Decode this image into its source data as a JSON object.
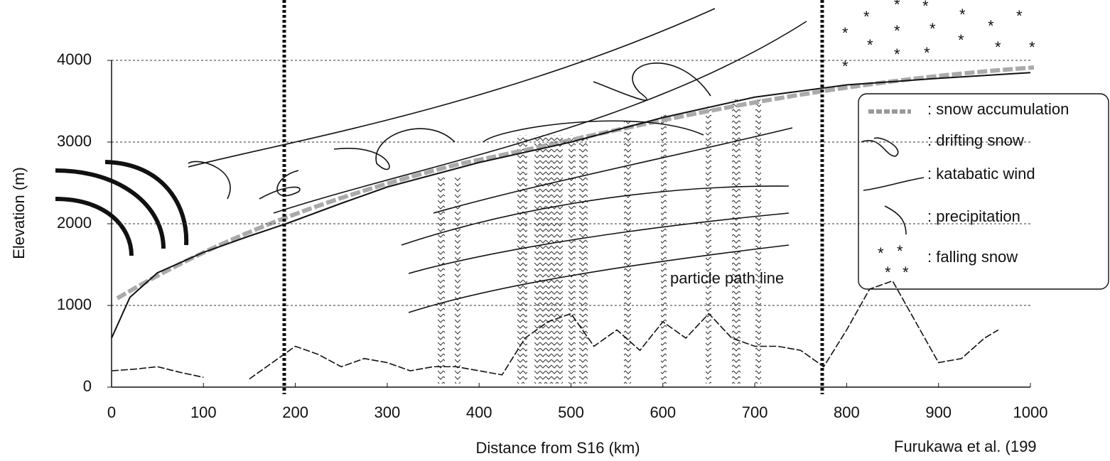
{
  "chart_data": {
    "type": "line",
    "xlabel": "Distance from S16 (km)",
    "ylabel": "Elevation (m)",
    "xlim": [
      0,
      1000
    ],
    "ylim": [
      0,
      4000
    ],
    "xticks": [
      0,
      100,
      200,
      300,
      400,
      500,
      600,
      700,
      800,
      900,
      1000
    ],
    "yticks": [
      0,
      1000,
      2000,
      3000,
      4000
    ],
    "grid": true,
    "annotations": [
      "particle path line",
      "Furukawa et al. (199"
    ],
    "legend_items": [
      ": snow accumulation",
      ": drifting snow",
      ": katabatic wind",
      ": precipitation",
      ": falling snow"
    ],
    "series": [
      {
        "color": "#111111",
        "x": [
          0,
          20,
          50,
          100,
          150,
          190,
          250,
          300,
          400,
          500,
          600,
          700,
          800,
          900,
          1000
        ],
        "values": [
          600,
          1100,
          1400,
          1650,
          1850,
          2000,
          2250,
          2450,
          2750,
          3000,
          3300,
          3550,
          3700,
          3780,
          3850
        ]
      },
      {
        "color": "#111111",
        "x": [
          0,
          25,
          50,
          75,
          100,
          125,
          150,
          175,
          200,
          225,
          250,
          275,
          300,
          325,
          350,
          375,
          400,
          425,
          450,
          475,
          500,
          525,
          550,
          575,
          600,
          625,
          650,
          675,
          700,
          725,
          750,
          775,
          800,
          825,
          850,
          875,
          900,
          925,
          950,
          965
        ],
        "values": [
          200,
          220,
          250,
          180,
          120,
          null,
          100,
          300,
          500,
          400,
          250,
          350,
          300,
          200,
          250,
          250,
          200,
          150,
          600,
          800,
          900,
          500,
          700,
          450,
          800,
          600,
          900,
          600,
          500,
          500,
          450,
          250,
          700,
          1200,
          1300,
          800,
          300,
          350,
          600,
          700
        ]
      }
    ]
  }
}
